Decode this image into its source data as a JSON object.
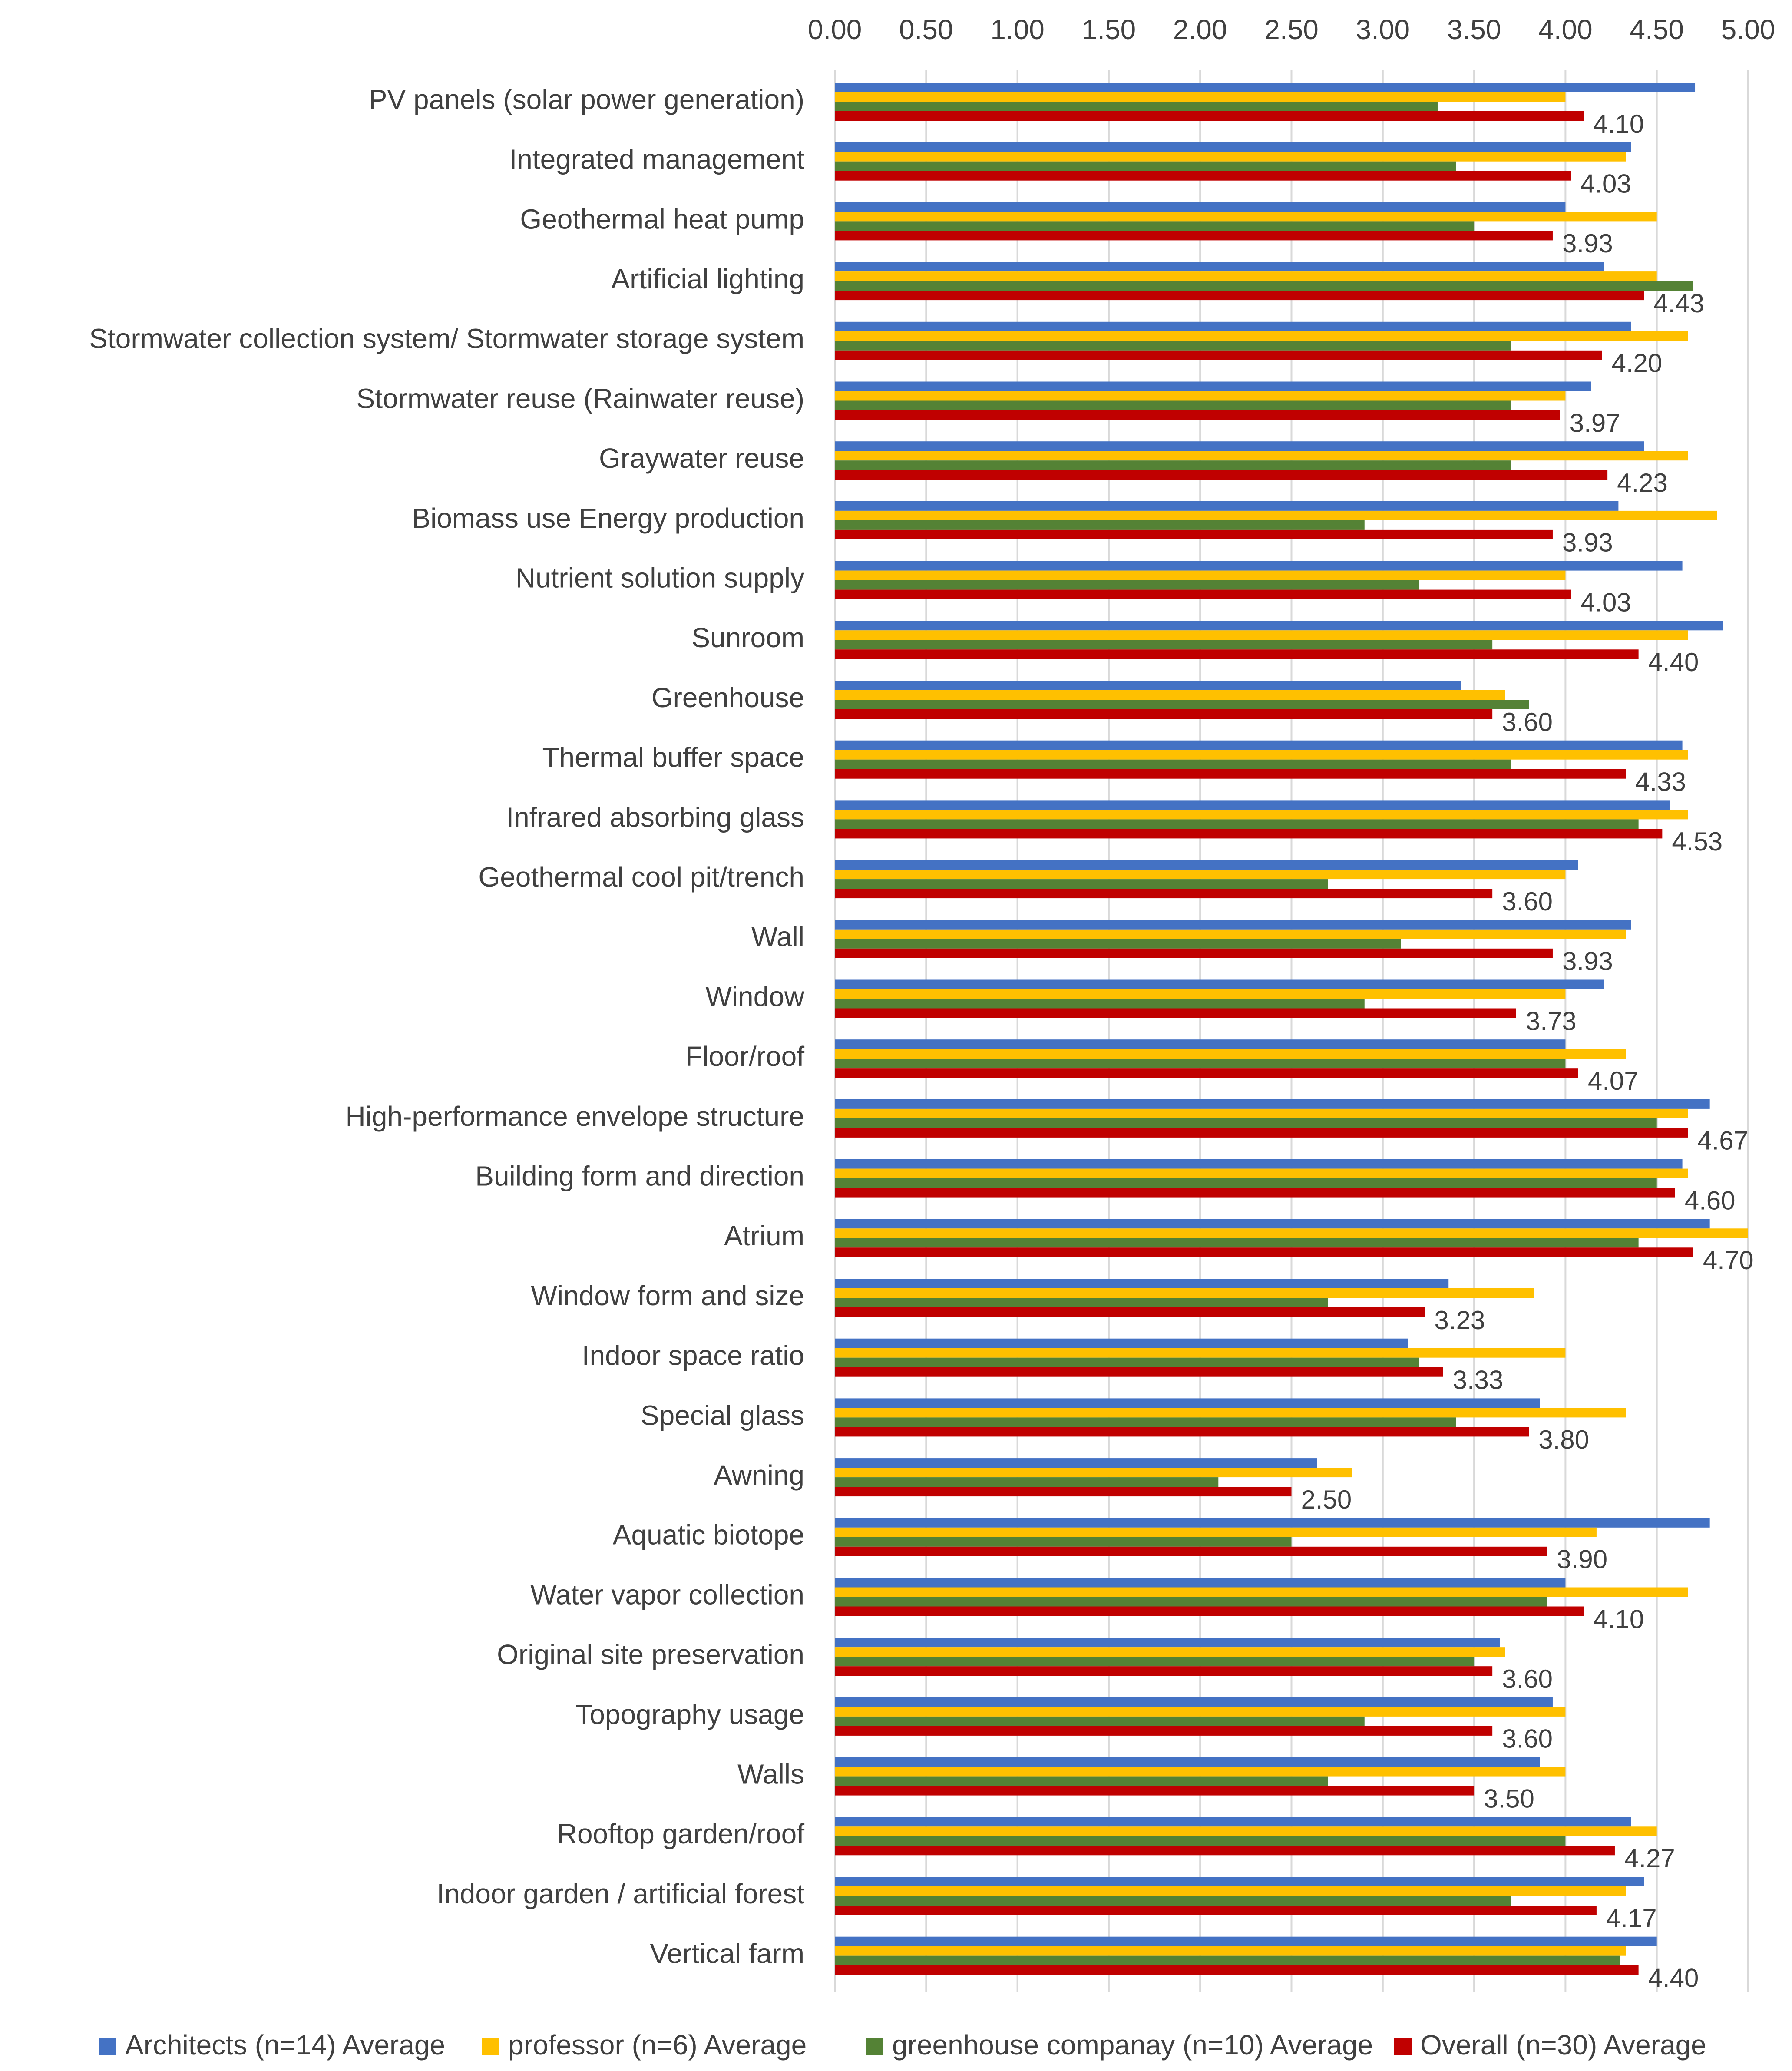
{
  "chart_data": {
    "type": "bar",
    "orientation": "horizontal",
    "xlim": [
      0,
      5
    ],
    "x_ticks": [
      "0.00",
      "0.50",
      "1.00",
      "1.50",
      "2.00",
      "2.50",
      "3.00",
      "3.50",
      "4.00",
      "4.50",
      "5.00"
    ],
    "x_axis_position": "top",
    "grid": true,
    "legend_position": "bottom",
    "categories": [
      "PV panels (solar power generation)",
      "Integrated management",
      "Geothermal heat pump",
      "Artificial lighting",
      "Stormwater collection system/ Stormwater storage system",
      "Stormwater reuse (Rainwater reuse)",
      "Graywater reuse",
      "Biomass use Energy production",
      "Nutrient solution supply",
      "Sunroom",
      "Greenhouse",
      "Thermal buffer space",
      "Infrared absorbing glass",
      "Geothermal cool pit/trench",
      "Wall",
      "Window",
      "Floor/roof",
      "High-performance envelope structure",
      "Building form and direction",
      "Atrium",
      "Window form and size",
      "Indoor space ratio",
      "Special glass",
      "Awning",
      "Aquatic biotope",
      "Water vapor collection",
      "Original site preservation",
      "Topography usage",
      "Walls",
      "Rooftop garden/roof",
      "Indoor garden / artificial forest",
      "Vertical farm"
    ],
    "series": [
      {
        "name": "Architects (n=14) Average",
        "color": "#4472c4",
        "values": [
          4.71,
          4.36,
          4.0,
          4.21,
          4.36,
          4.14,
          4.43,
          4.29,
          4.64,
          4.86,
          3.43,
          4.64,
          4.57,
          4.07,
          4.36,
          4.21,
          4.0,
          4.79,
          4.64,
          4.79,
          3.36,
          3.14,
          3.86,
          2.64,
          4.79,
          4.0,
          3.64,
          3.93,
          3.86,
          4.36,
          4.43,
          4.5
        ]
      },
      {
        "name": "professor (n=6) Average",
        "color": "#ffc000",
        "values": [
          4.0,
          4.33,
          4.5,
          4.5,
          4.67,
          4.0,
          4.67,
          4.83,
          4.0,
          4.67,
          3.67,
          4.67,
          4.67,
          4.0,
          4.33,
          4.0,
          4.33,
          4.67,
          4.67,
          5.0,
          3.83,
          4.0,
          4.33,
          2.83,
          4.17,
          4.67,
          3.67,
          4.0,
          4.0,
          4.5,
          4.33,
          4.33
        ]
      },
      {
        "name": "greenhouse companay (n=10) Average",
        "color": "#548235",
        "values": [
          3.3,
          3.4,
          3.5,
          4.7,
          3.7,
          3.7,
          3.7,
          2.9,
          3.2,
          3.6,
          3.8,
          3.7,
          4.4,
          2.7,
          3.1,
          2.9,
          4.0,
          4.5,
          4.5,
          4.4,
          2.7,
          3.2,
          3.4,
          2.1,
          2.5,
          3.9,
          3.5,
          2.9,
          2.7,
          4.0,
          3.7,
          4.3
        ]
      },
      {
        "name": "Overall (n=30) Average",
        "color": "#c00000",
        "values": [
          4.1,
          4.03,
          3.93,
          4.43,
          4.2,
          3.97,
          4.23,
          3.93,
          4.03,
          4.4,
          3.6,
          4.33,
          4.53,
          3.6,
          3.93,
          3.73,
          4.07,
          4.67,
          4.6,
          4.7,
          3.23,
          3.33,
          3.8,
          2.5,
          3.9,
          4.1,
          3.6,
          3.6,
          3.5,
          4.27,
          4.17,
          4.4
        ],
        "data_labels": [
          "4.10",
          "4.03",
          "3.93",
          "4.43",
          "4.20",
          "3.97",
          "4.23",
          "3.93",
          "4.03",
          "4.40",
          "3.60",
          "4.33",
          "4.53",
          "3.60",
          "3.93",
          "3.73",
          "4.07",
          "4.67",
          "4.60",
          "4.70",
          "3.23",
          "3.33",
          "3.80",
          "2.50",
          "3.90",
          "4.10",
          "3.60",
          "3.60",
          "3.50",
          "4.27",
          "4.17",
          "4.40"
        ]
      }
    ]
  }
}
